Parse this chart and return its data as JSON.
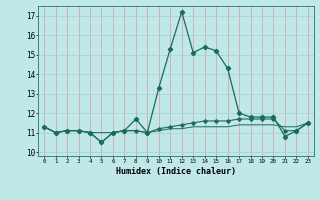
{
  "x": [
    0,
    1,
    2,
    3,
    4,
    5,
    6,
    7,
    8,
    9,
    10,
    11,
    12,
    13,
    14,
    15,
    16,
    17,
    18,
    19,
    20,
    21,
    22,
    23
  ],
  "line1": [
    11.3,
    11.0,
    11.1,
    11.1,
    11.0,
    10.5,
    11.0,
    11.1,
    11.7,
    11.0,
    13.3,
    15.3,
    17.2,
    15.1,
    15.4,
    15.2,
    14.3,
    12.0,
    11.8,
    11.8,
    11.8,
    10.8,
    11.1,
    11.5
  ],
  "line2": [
    11.3,
    11.0,
    11.1,
    11.1,
    11.0,
    10.5,
    11.0,
    11.1,
    11.1,
    11.0,
    11.2,
    11.3,
    11.4,
    11.5,
    11.6,
    11.6,
    11.6,
    11.7,
    11.7,
    11.7,
    11.7,
    11.1,
    11.1,
    11.5
  ],
  "line3": [
    11.3,
    11.0,
    11.1,
    11.1,
    11.0,
    11.0,
    11.0,
    11.1,
    11.1,
    11.0,
    11.1,
    11.2,
    11.2,
    11.3,
    11.3,
    11.3,
    11.3,
    11.4,
    11.4,
    11.4,
    11.4,
    11.3,
    11.3,
    11.5
  ],
  "line_color": "#1a6b5a",
  "bg_color": "#c0e8e8",
  "grid_color_minor": "#a8d4d4",
  "grid_color_major": "#d4a8a8",
  "xlabel": "Humidex (Indice chaleur)",
  "ylim": [
    9.8,
    17.5
  ],
  "xlim": [
    -0.5,
    23.5
  ],
  "yticks": [
    10,
    11,
    12,
    13,
    14,
    15,
    16,
    17
  ],
  "xticks": [
    0,
    1,
    2,
    3,
    4,
    5,
    6,
    7,
    8,
    9,
    10,
    11,
    12,
    13,
    14,
    15,
    16,
    17,
    18,
    19,
    20,
    21,
    22,
    23
  ]
}
